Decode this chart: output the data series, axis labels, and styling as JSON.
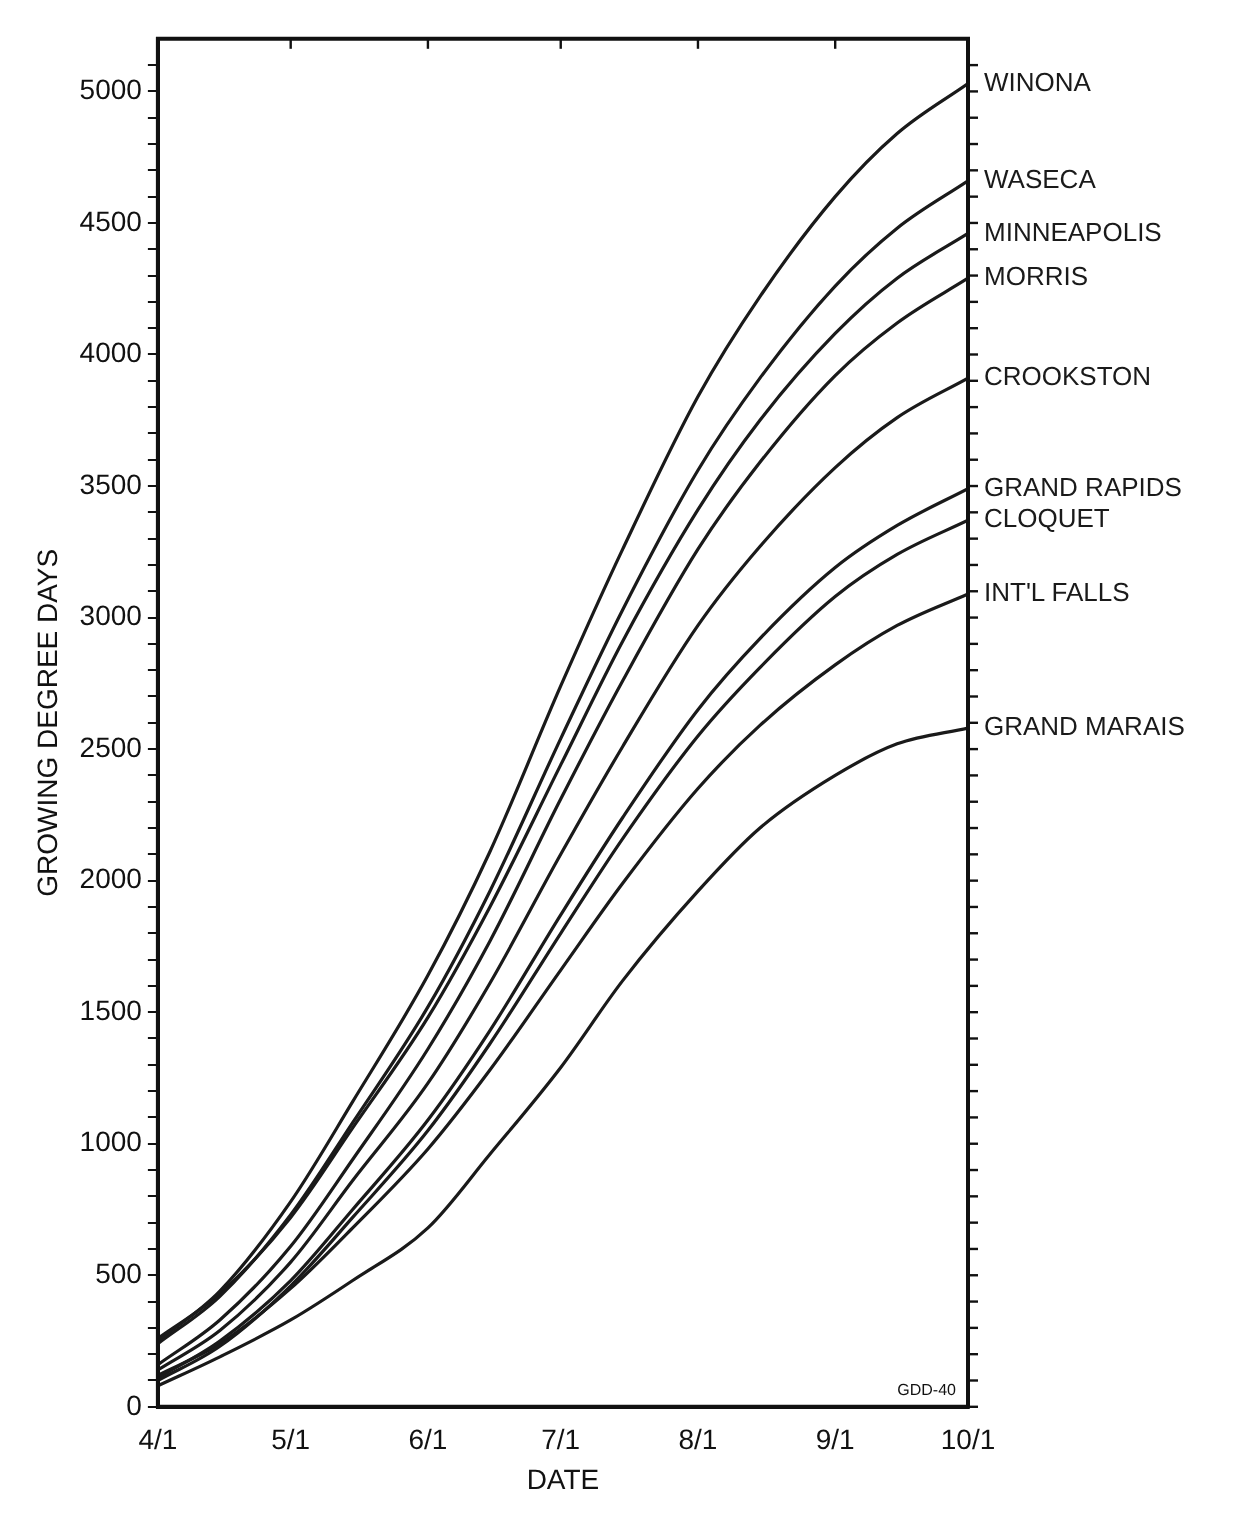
{
  "chart_data": {
    "type": "line",
    "xlabel": "DATE",
    "ylabel": "GROWING DEGREE DAYS",
    "annotations": [
      "GDD-40"
    ],
    "marker": "none",
    "line_style": "solid",
    "legend": "right",
    "x": [
      "--04-01",
      "--04-15",
      "--05-01",
      "--05-15",
      "--06-01",
      "--06-15",
      "--07-01",
      "--07-15",
      "--08-01",
      "--08-15",
      "--09-01",
      "--09-15",
      "--10-01"
    ],
    "xlim": [
      "--04-01",
      "--10-01"
    ],
    "xticks": [
      {
        "value": "--04-01",
        "label": "4/1"
      },
      {
        "value": "--05-01",
        "label": "5/1"
      },
      {
        "value": "--06-01",
        "label": "6/1"
      },
      {
        "value": "--07-01",
        "label": "7/1"
      },
      {
        "value": "--08-01",
        "label": "8/1"
      },
      {
        "value": "--09-01",
        "label": "9/1"
      },
      {
        "value": "--10-01",
        "label": "10/1"
      }
    ],
    "ylim": [
      0,
      5200
    ],
    "yticks": [
      0,
      {
        "value": 100,
        "label": null
      },
      {
        "value": 200,
        "label": null
      },
      {
        "value": 300,
        "label": null
      },
      {
        "value": 400,
        "label": null
      },
      500,
      {
        "value": 600,
        "label": null
      },
      {
        "value": 700,
        "label": null
      },
      {
        "value": 800,
        "label": null
      },
      {
        "value": 900,
        "label": null
      },
      1000,
      {
        "value": 1100,
        "label": null
      },
      {
        "value": 1200,
        "label": null
      },
      {
        "value": 1300,
        "label": null
      },
      {
        "value": 1400,
        "label": null
      },
      1500,
      {
        "value": 1600,
        "label": null
      },
      {
        "value": 1700,
        "label": null
      },
      {
        "value": 1800,
        "label": null
      },
      {
        "value": 1900,
        "label": null
      },
      2000,
      {
        "value": 2100,
        "label": null
      },
      {
        "value": 2200,
        "label": null
      },
      {
        "value": 2300,
        "label": null
      },
      {
        "value": 2400,
        "label": null
      },
      2500,
      {
        "value": 2600,
        "label": null
      },
      {
        "value": 2700,
        "label": null
      },
      {
        "value": 2800,
        "label": null
      },
      {
        "value": 2900,
        "label": null
      },
      3000,
      {
        "value": 3100,
        "label": null
      },
      {
        "value": 3200,
        "label": null
      },
      {
        "value": 3300,
        "label": null
      },
      {
        "value": 3400,
        "label": null
      },
      3500,
      {
        "value": 3600,
        "label": null
      },
      {
        "value": 3700,
        "label": null
      },
      {
        "value": 3800,
        "label": null
      },
      {
        "value": 3900,
        "label": null
      },
      4000,
      {
        "value": 4100,
        "label": null
      },
      {
        "value": 4200,
        "label": null
      },
      {
        "value": 4300,
        "label": null
      },
      {
        "value": 4400,
        "label": null
      },
      4500,
      {
        "value": 4600,
        "label": null
      },
      {
        "value": 4700,
        "label": null
      },
      {
        "value": 4800,
        "label": null
      },
      {
        "value": 4900,
        "label": null
      },
      5000,
      {
        "value": 5100,
        "label": null
      }
    ],
    "series": [
      {
        "name": "WINONA",
        "color": "#1a1a1a",
        "values": [
          250,
          440,
          780,
          1160,
          1640,
          2110,
          2740,
          3260,
          3840,
          4220,
          4600,
          4840,
          5030
        ]
      },
      {
        "name": "WASECA",
        "color": "#1a1a1a",
        "values": [
          240,
          420,
          730,
          1080,
          1520,
          1960,
          2540,
          3030,
          3560,
          3910,
          4260,
          4480,
          4660
        ]
      },
      {
        "name": "MINNEAPOLIS",
        "color": "#1a1a1a",
        "values": [
          260,
          430,
          720,
          1060,
          1480,
          1900,
          2440,
          2910,
          3410,
          3750,
          4080,
          4290,
          4460
        ]
      },
      {
        "name": "MORRIS",
        "color": "#1a1a1a",
        "values": [
          160,
          330,
          610,
          940,
          1360,
          1770,
          2310,
          2760,
          3260,
          3590,
          3920,
          4120,
          4290
        ]
      },
      {
        "name": "CROOKSTON",
        "color": "#1a1a1a",
        "values": [
          140,
          290,
          550,
          860,
          1230,
          1610,
          2100,
          2510,
          2970,
          3270,
          3570,
          3760,
          3910
        ]
      },
      {
        "name": "GRAND RAPIDS",
        "color": "#1a1a1a",
        "values": [
          110,
          250,
          480,
          750,
          1090,
          1430,
          1870,
          2240,
          2650,
          2920,
          3190,
          3350,
          3490
        ]
      },
      {
        "name": "CLOQUET",
        "color": "#1a1a1a",
        "values": [
          100,
          230,
          460,
          720,
          1050,
          1380,
          1800,
          2160,
          2550,
          2810,
          3080,
          3240,
          3370
        ]
      },
      {
        "name": "INT'L FALLS",
        "color": "#1a1a1a",
        "values": [
          120,
          240,
          450,
          680,
          980,
          1280,
          1660,
          1990,
          2350,
          2590,
          2820,
          2970,
          3090
        ]
      },
      {
        "name": "GRAND MARAIS",
        "color": "#1a1a1a",
        "values": [
          80,
          190,
          330,
          480,
          680,
          960,
          1290,
          1620,
          1960,
          2200,
          2400,
          2520,
          2580
        ]
      }
    ]
  }
}
